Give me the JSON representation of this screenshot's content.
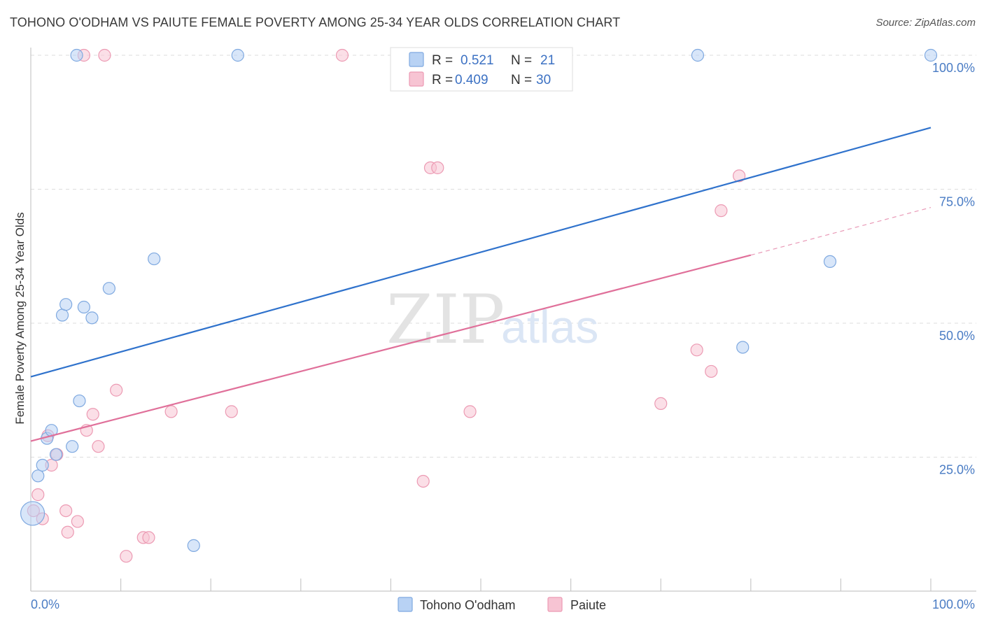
{
  "title": "TOHONO O'ODHAM VS PAIUTE FEMALE POVERTY AMONG 25-34 YEAR OLDS CORRELATION CHART",
  "source": "Source: ZipAtlas.com",
  "watermark": {
    "zip": "ZIP",
    "atlas": "atlas"
  },
  "colors": {
    "blue_fill": "#b8d2f4",
    "blue_stroke": "#7fa9e0",
    "blue_line": "#2f72cc",
    "pink_fill": "#f7c4d3",
    "pink_stroke": "#ec9ab3",
    "pink_line": "#e0709a",
    "tick_text": "#4a7cc4",
    "grid": "#dddddd"
  },
  "legend": {
    "rows": [
      {
        "r_label": "R =",
        "r_value": "0.521",
        "n_label": "N =",
        "n_value": "21",
        "series": "Tohono O'odham"
      },
      {
        "r_label": "R =",
        "r_value": "0.409",
        "n_label": "N =",
        "n_value": "30",
        "series": "Paiute"
      }
    ]
  },
  "chart_data": {
    "type": "scatter",
    "title": "TOHONO O'ODHAM VS PAIUTE FEMALE POVERTY AMONG 25-34 YEAR OLDS CORRELATION CHART",
    "xlabel": "",
    "ylabel": "Female Poverty Among 25-34 Year Olds",
    "xlim": [
      0,
      100
    ],
    "ylim": [
      0,
      100
    ],
    "x_tick_labels": [
      {
        "value": 0,
        "label": "0.0%"
      },
      {
        "value": 100,
        "label": "100.0%"
      }
    ],
    "y_tick_labels": [
      {
        "value": 25,
        "label": "25.0%"
      },
      {
        "value": 50,
        "label": "50.0%"
      },
      {
        "value": 75,
        "label": "75.0%"
      },
      {
        "value": 100,
        "label": "100.0%"
      }
    ],
    "grid": true,
    "legend_position": "bottom-center",
    "series": [
      {
        "name": "Tohono O'odham",
        "color": "#b8d2f4",
        "points": [
          {
            "x": 0.2,
            "y": 14.5,
            "big": true
          },
          {
            "x": 0.8,
            "y": 21.5
          },
          {
            "x": 1.3,
            "y": 23.5
          },
          {
            "x": 1.8,
            "y": 28.5
          },
          {
            "x": 2.3,
            "y": 30.0
          },
          {
            "x": 2.8,
            "y": 25.5
          },
          {
            "x": 3.5,
            "y": 51.5
          },
          {
            "x": 3.9,
            "y": 53.5
          },
          {
            "x": 4.6,
            "y": 27.0
          },
          {
            "x": 5.1,
            "y": 100
          },
          {
            "x": 5.4,
            "y": 35.5
          },
          {
            "x": 5.9,
            "y": 53.0
          },
          {
            "x": 6.8,
            "y": 51.0
          },
          {
            "x": 8.7,
            "y": 56.5
          },
          {
            "x": 13.7,
            "y": 62.0
          },
          {
            "x": 18.1,
            "y": 8.5
          },
          {
            "x": 23.0,
            "y": 100
          },
          {
            "x": 74.1,
            "y": 100
          },
          {
            "x": 79.1,
            "y": 45.5
          },
          {
            "x": 88.8,
            "y": 61.5
          },
          {
            "x": 100,
            "y": 100
          }
        ],
        "trend": {
          "x": [
            0,
            100
          ],
          "y": [
            40.0,
            86.5
          ]
        }
      },
      {
        "name": "Paiute",
        "color": "#f7c4d3",
        "points": [
          {
            "x": 0.3,
            "y": 15.0
          },
          {
            "x": 0.8,
            "y": 18.0
          },
          {
            "x": 1.3,
            "y": 13.5
          },
          {
            "x": 1.9,
            "y": 29.0
          },
          {
            "x": 2.3,
            "y": 23.5
          },
          {
            "x": 2.9,
            "y": 25.5
          },
          {
            "x": 3.9,
            "y": 15.0
          },
          {
            "x": 4.1,
            "y": 11.0
          },
          {
            "x": 5.2,
            "y": 13.0
          },
          {
            "x": 5.9,
            "y": 100
          },
          {
            "x": 6.2,
            "y": 30.0
          },
          {
            "x": 6.9,
            "y": 33.0
          },
          {
            "x": 7.5,
            "y": 27.0
          },
          {
            "x": 8.2,
            "y": 100
          },
          {
            "x": 9.5,
            "y": 37.5
          },
          {
            "x": 10.6,
            "y": 6.5
          },
          {
            "x": 12.5,
            "y": 10.0
          },
          {
            "x": 13.1,
            "y": 10.0
          },
          {
            "x": 15.6,
            "y": 33.5
          },
          {
            "x": 22.3,
            "y": 33.5
          },
          {
            "x": 34.6,
            "y": 100
          },
          {
            "x": 43.6,
            "y": 20.5
          },
          {
            "x": 44.4,
            "y": 79.0
          },
          {
            "x": 45.2,
            "y": 79.0
          },
          {
            "x": 48.8,
            "y": 33.5
          },
          {
            "x": 70.0,
            "y": 35.0
          },
          {
            "x": 74.0,
            "y": 45.0
          },
          {
            "x": 75.6,
            "y": 41.0
          },
          {
            "x": 76.7,
            "y": 71.0
          },
          {
            "x": 78.7,
            "y": 77.5
          }
        ],
        "trend": {
          "x": [
            0,
            80
          ],
          "y": [
            28.0,
            62.7
          ]
        },
        "trend_dashed": {
          "x": [
            80,
            100
          ],
          "y": [
            62.7,
            71.6
          ]
        }
      }
    ]
  }
}
